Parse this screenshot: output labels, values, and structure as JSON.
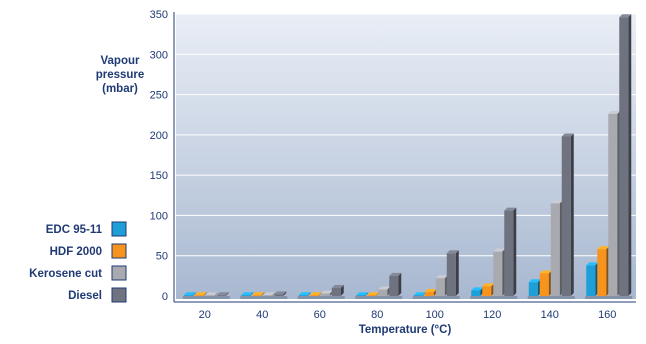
{
  "chart_data": {
    "type": "bar",
    "title": "",
    "ylabel_lines": [
      "Vapour",
      "pressure",
      "(mbar)"
    ],
    "xlabel": "Temperature (°C)",
    "categories": [
      "20",
      "40",
      "60",
      "80",
      "100",
      "120",
      "140",
      "160"
    ],
    "ylim": [
      0,
      350
    ],
    "yticks": [
      0,
      50,
      100,
      150,
      200,
      250,
      300,
      350
    ],
    "grid": true,
    "legend_position": "left",
    "series": [
      {
        "name": "EDC 95-11",
        "color": "#1e9fd8",
        "values": [
          0,
          0,
          0,
          0,
          1,
          7,
          17,
          38
        ]
      },
      {
        "name": "HDF 2000",
        "color": "#f7941d",
        "values": [
          0,
          0,
          0,
          1,
          5,
          12,
          28,
          58
        ]
      },
      {
        "name": "Kerosene cut",
        "color": "#a9aab0",
        "values": [
          0,
          1,
          3,
          8,
          22,
          55,
          115,
          226
        ]
      },
      {
        "name": "Diesel",
        "color": "#6f7380",
        "values": [
          1,
          2,
          10,
          25,
          53,
          106,
          198,
          346
        ]
      }
    ]
  }
}
